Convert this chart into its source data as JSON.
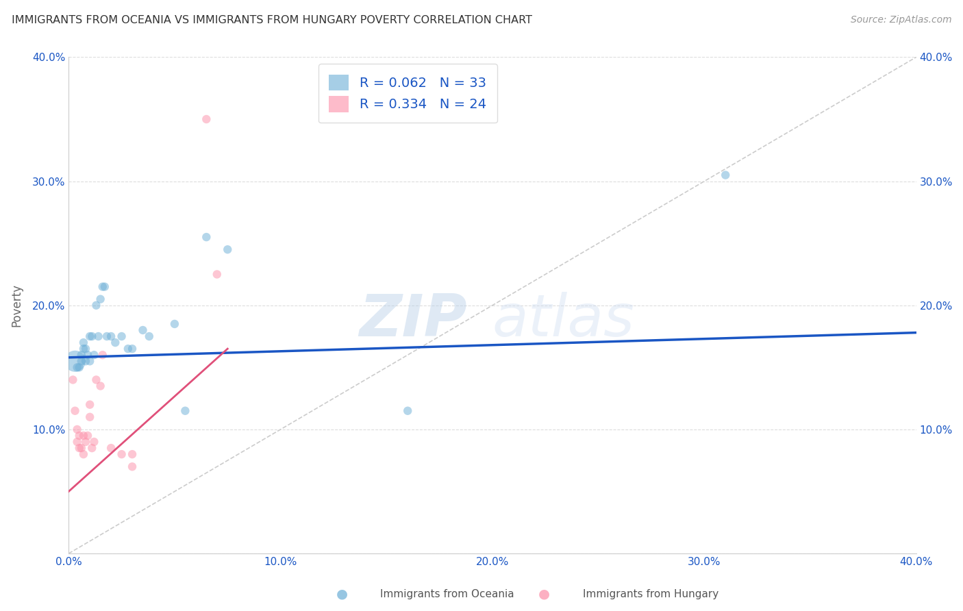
{
  "title": "IMMIGRANTS FROM OCEANIA VS IMMIGRANTS FROM HUNGARY POVERTY CORRELATION CHART",
  "source": "Source: ZipAtlas.com",
  "ylabel": "Poverty",
  "xlim": [
    0.0,
    0.4
  ],
  "ylim": [
    0.0,
    0.4
  ],
  "xticks": [
    0.0,
    0.1,
    0.2,
    0.3,
    0.4
  ],
  "yticks": [
    0.0,
    0.1,
    0.2,
    0.3,
    0.4
  ],
  "xtick_labels": [
    "0.0%",
    "10.0%",
    "20.0%",
    "30.0%",
    "40.0%"
  ],
  "ytick_labels": [
    "",
    "10.0%",
    "20.0%",
    "30.0%",
    "40.0%"
  ],
  "blue_color": "#6baed6",
  "pink_color": "#fc8fa8",
  "blue_line_color": "#1a56c4",
  "pink_line_color": "#e0507a",
  "legend_blue_label": "R = 0.062   N = 33",
  "legend_pink_label": "R = 0.334   N = 24",
  "legend_label_color": "#1a56c4",
  "watermark_zip": "ZIP",
  "watermark_atlas": "atlas",
  "blue_scatter_x": [
    0.003,
    0.004,
    0.005,
    0.006,
    0.006,
    0.007,
    0.007,
    0.008,
    0.008,
    0.009,
    0.01,
    0.01,
    0.011,
    0.012,
    0.013,
    0.014,
    0.015,
    0.016,
    0.017,
    0.018,
    0.02,
    0.022,
    0.025,
    0.028,
    0.03,
    0.035,
    0.038,
    0.05,
    0.055,
    0.065,
    0.075,
    0.16,
    0.31
  ],
  "blue_scatter_y": [
    0.155,
    0.15,
    0.15,
    0.16,
    0.155,
    0.165,
    0.17,
    0.155,
    0.165,
    0.16,
    0.175,
    0.155,
    0.175,
    0.16,
    0.2,
    0.175,
    0.205,
    0.215,
    0.215,
    0.175,
    0.175,
    0.17,
    0.175,
    0.165,
    0.165,
    0.18,
    0.175,
    0.185,
    0.115,
    0.255,
    0.245,
    0.115,
    0.305
  ],
  "blue_scatter_sizes": [
    500,
    80,
    80,
    80,
    80,
    80,
    80,
    80,
    80,
    80,
    80,
    80,
    80,
    80,
    80,
    80,
    80,
    80,
    80,
    80,
    80,
    80,
    80,
    80,
    80,
    80,
    80,
    80,
    80,
    80,
    80,
    80,
    80
  ],
  "pink_scatter_x": [
    0.002,
    0.003,
    0.004,
    0.004,
    0.005,
    0.005,
    0.006,
    0.007,
    0.007,
    0.008,
    0.009,
    0.01,
    0.01,
    0.011,
    0.012,
    0.013,
    0.015,
    0.016,
    0.02,
    0.025,
    0.03,
    0.03,
    0.065,
    0.07
  ],
  "pink_scatter_y": [
    0.14,
    0.115,
    0.1,
    0.09,
    0.085,
    0.095,
    0.085,
    0.095,
    0.08,
    0.09,
    0.095,
    0.11,
    0.12,
    0.085,
    0.09,
    0.14,
    0.135,
    0.16,
    0.085,
    0.08,
    0.08,
    0.07,
    0.35,
    0.225
  ],
  "pink_scatter_sizes": [
    80,
    80,
    80,
    80,
    80,
    80,
    80,
    80,
    80,
    80,
    80,
    80,
    80,
    80,
    80,
    80,
    80,
    80,
    80,
    80,
    80,
    80,
    80,
    80
  ],
  "blue_line_x": [
    0.0,
    0.4
  ],
  "blue_line_y": [
    0.158,
    0.178
  ],
  "pink_line_x": [
    0.0,
    0.075
  ],
  "pink_line_y": [
    0.05,
    0.165
  ]
}
